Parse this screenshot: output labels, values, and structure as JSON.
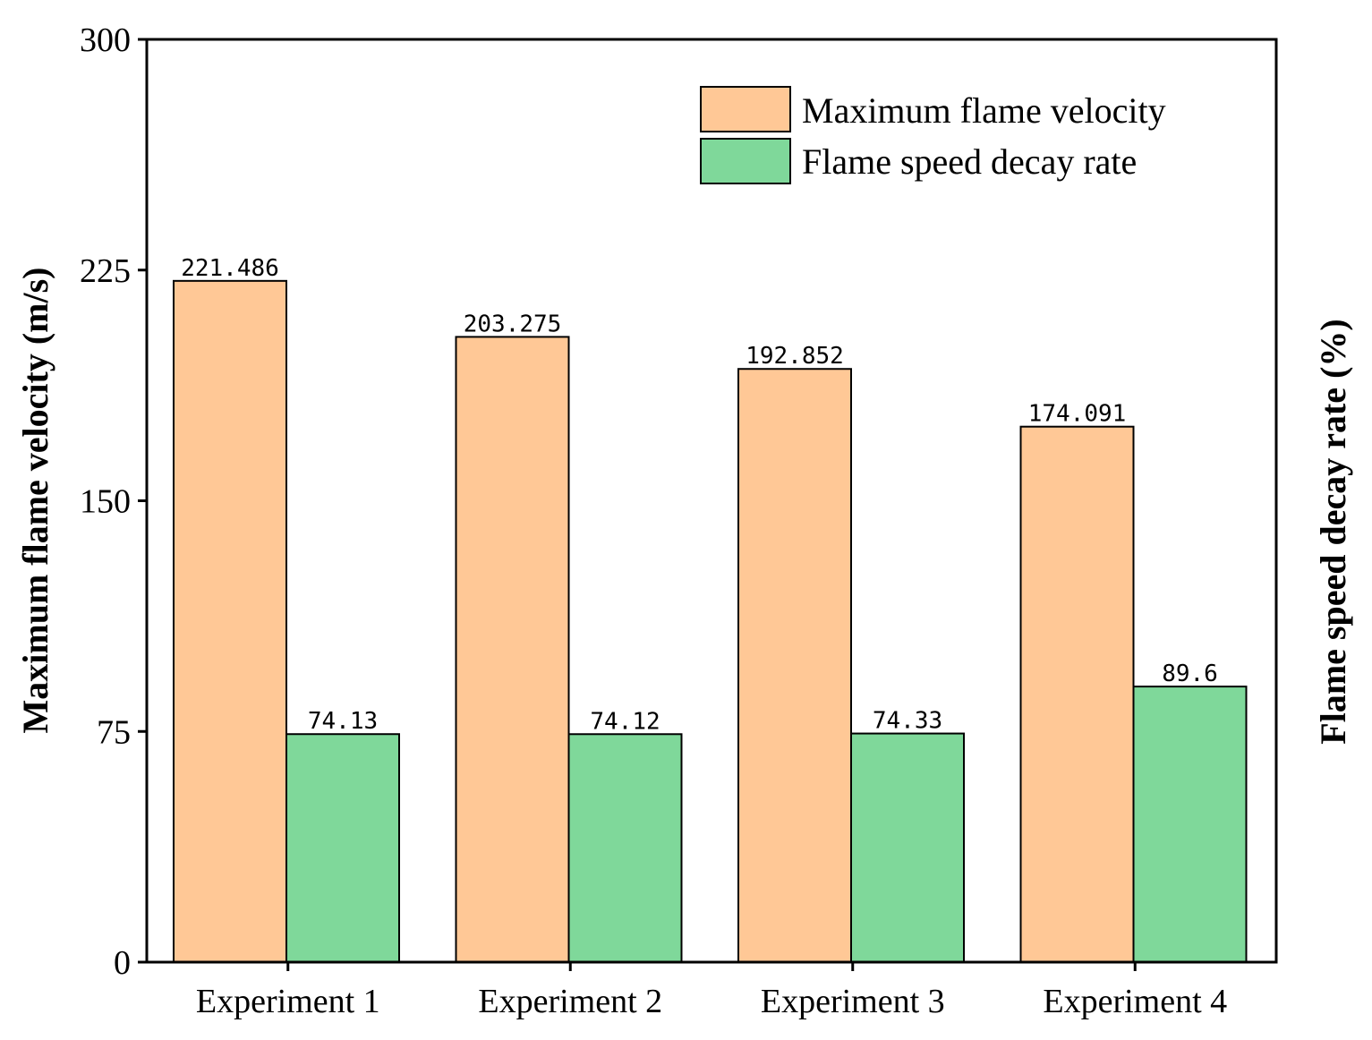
{
  "chart_data": {
    "type": "bar",
    "title": "",
    "categories": [
      "Experiment 1",
      "Experiment 2",
      "Experiment 3",
      "Experiment 4"
    ],
    "series": [
      {
        "name": "Maximum flame velocity",
        "axis": "left",
        "color": "#FFC896",
        "values": [
          221.486,
          203.275,
          192.852,
          174.091
        ],
        "labels": [
          "221.486",
          "203.275",
          "192.852",
          "174.091"
        ]
      },
      {
        "name": "Flame speed decay rate",
        "axis": "right",
        "color": "#7FD89A",
        "values": [
          74.13,
          74.12,
          74.33,
          89.6
        ],
        "labels": [
          "74.13",
          "74.12",
          "74.33",
          "89.6"
        ]
      }
    ],
    "ylabel": "Maximum flame velocity (m/s)",
    "y2label": "Flame speed decay rate (%)",
    "xlabel": "",
    "ylim": [
      0,
      300
    ],
    "yticks": [
      0,
      75,
      150,
      225,
      300
    ],
    "y2lim": [
      0,
      300
    ],
    "grid": false,
    "legend_position": "top-right"
  }
}
